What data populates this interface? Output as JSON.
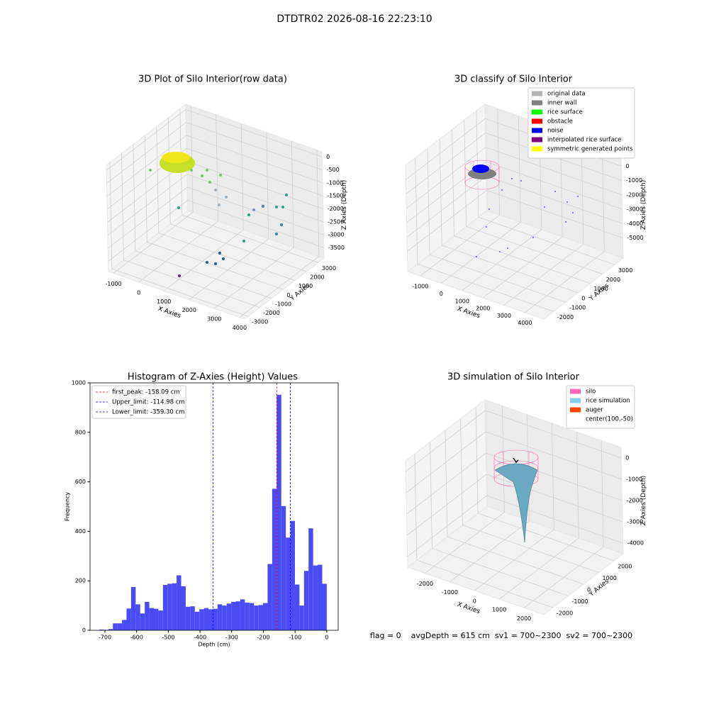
{
  "title": "DTDTR02 2026-08-16 22:23:10",
  "status": "flag = 0    avgDepth = 615 cm  sv1 = 700~2300  sv2 = 700~2300",
  "chart_data": [
    {
      "type": "scatter3d",
      "title": "3D Plot of Silo Interior(row data)",
      "xlabel": "X Axies",
      "ylabel": "Y Axies",
      "zlabel": "Z Axies (Depth)",
      "xlim": [
        -1200,
        4200
      ],
      "ylim": [
        -3300,
        3500
      ],
      "zlim": [
        -3900,
        200
      ],
      "xticks": [
        -1000,
        0,
        1000,
        2000,
        3000,
        4000
      ],
      "yticks": [
        -3000,
        -2000,
        -1000,
        0,
        1000,
        2000,
        3000
      ],
      "zticks": [
        0,
        -500,
        -1000,
        -1500,
        -2000,
        -2500,
        -3000,
        -3500
      ],
      "grid": true
    },
    {
      "type": "scatter3d",
      "title": "3D classify of Silo Interior",
      "xlabel": "X Axies",
      "ylabel": "Y Axies",
      "zlabel": "Z Axies (Depth)",
      "xlim": [
        -1600,
        4900
      ],
      "ylim": [
        -2800,
        3700
      ],
      "zlim": [
        -6400,
        1000
      ],
      "xticks": [
        -1000,
        0,
        1000,
        2000,
        3000,
        4000
      ],
      "yticks": [
        -2000,
        -1000,
        0,
        1000,
        2000,
        3000
      ],
      "zticks": [
        0,
        -1000,
        -2000,
        -3000,
        -4000,
        -5000
      ],
      "grid": true,
      "legend_loc": "upper right",
      "legend": [
        {
          "name": "original data",
          "color": "#b3b3b3"
        },
        {
          "name": "inner wall",
          "color": "#808080"
        },
        {
          "name": "rice surface",
          "color": "#00ff00"
        },
        {
          "name": "obstacle",
          "color": "#ff0000"
        },
        {
          "name": "noise",
          "color": "#0000ff"
        },
        {
          "name": "interpolated rice surface",
          "color": "#800080"
        },
        {
          "name": "symmetric generated points",
          "color": "#ffff00"
        }
      ]
    },
    {
      "type": "histogram",
      "title": "Histogram of Z-Axies (Height) Values",
      "xlabel": "Depth (cm)",
      "ylabel": "Frequency",
      "color": "#4b4bf5",
      "bins": [
        -718,
        -703.64,
        -689.28,
        -674.92,
        -660.56,
        -646.2,
        -631.84,
        -617.48,
        -603.12,
        -588.76,
        -574.4,
        -560.04,
        -545.68,
        -531.32,
        -516.96,
        -502.6,
        -488.24,
        -473.88,
        -459.52,
        -445.16,
        -430.8,
        -416.44,
        -402.08,
        -387.72,
        -373.36,
        -359,
        -344.64,
        -330.28,
        -315.92,
        -301.56,
        -287.2,
        -272.84,
        -258.48,
        -244.12,
        -229.76,
        -215.4,
        -201.04,
        -186.68,
        -172.32,
        -157.96,
        -143.6,
        -129.24,
        -114.88,
        -100.52,
        -86.16,
        -71.8,
        -57.44,
        -43.08,
        -28.72,
        -14.36,
        0
      ],
      "counts": [
        3,
        2,
        5,
        28,
        28,
        42,
        88,
        175,
        105,
        68,
        115,
        90,
        87,
        80,
        183,
        188,
        190,
        222,
        178,
        95,
        97,
        75,
        85,
        90,
        85,
        87,
        105,
        100,
        108,
        115,
        117,
        125,
        112,
        110,
        100,
        102,
        110,
        268,
        572,
        952,
        502,
        375,
        442,
        185,
        100,
        240,
        412,
        262,
        265,
        188
      ],
      "xlim": [
        -747,
        36
      ],
      "ylim": [
        0,
        1000
      ],
      "xticks": [
        -700,
        -600,
        -500,
        -400,
        -300,
        -200,
        -100,
        0
      ],
      "yticks": [
        0,
        200,
        400,
        600,
        800,
        1000
      ],
      "legend_loc": "upper left",
      "lines": [
        {
          "name": "first_peak: -158.09 cm",
          "value": -158.09,
          "color": "#ff0000"
        },
        {
          "name": "Upper_limit: -114.98 cm",
          "value": -114.98,
          "color": "#0000ff"
        },
        {
          "name": "Lower_limit: -359.30 cm",
          "value": -359.3,
          "color": "#0000ff"
        }
      ]
    },
    {
      "type": "surface3d",
      "title": "3D simulation of Silo Interior",
      "xlabel": "X Axies",
      "ylabel": "Y Axies",
      "zlabel": "Z Axies (Depth)",
      "xlim": [
        -2700,
        2800
      ],
      "ylim": [
        -2600,
        2600
      ],
      "zlim": [
        -4500,
        500
      ],
      "xticks": [
        -2000,
        -1000,
        0,
        1000,
        2000
      ],
      "yticks": [
        -2000,
        -1000,
        0,
        1000,
        2000
      ],
      "zticks": [
        0,
        -1000,
        -2000,
        -3000,
        -4000
      ],
      "grid": true,
      "legend_loc": "upper right",
      "legend": [
        {
          "name": "silo",
          "color": "#ff69b4"
        },
        {
          "name": "rice simulation",
          "color": "#87ceeb"
        },
        {
          "name": "auger",
          "color": "#ff4500"
        },
        {
          "name": "center(100,-50)",
          "color": null
        }
      ]
    }
  ]
}
